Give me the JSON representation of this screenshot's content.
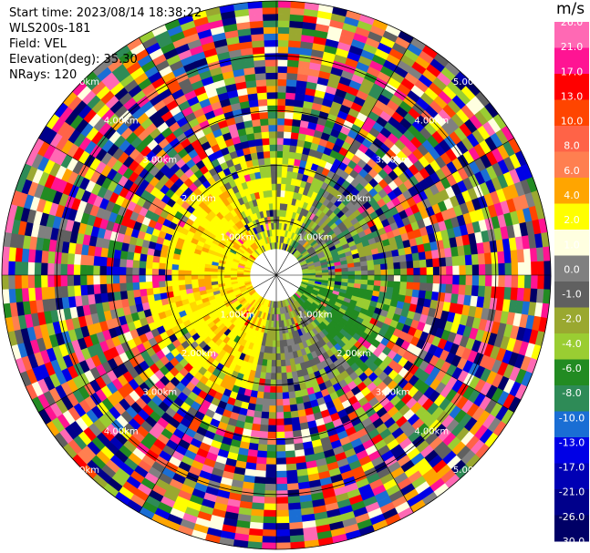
{
  "info": {
    "start_time": "Start time: 2023/08/14 18:38:22",
    "station": "WLS200s-181",
    "field": "Field: VEL",
    "elevation": "Elevation(deg): 35.30",
    "nrays": "NRays: 120"
  },
  "colorbar": {
    "title": "m/s",
    "colors": [
      "#000066",
      "#00008b",
      "#0000b4",
      "#0000e6",
      "#1a6ed4",
      "#2e8b57",
      "#228b22",
      "#9acd32",
      "#9aa830",
      "#606060",
      "#808080",
      "#ffffe0",
      "#ffff00",
      "#ffa500",
      "#ff7f50",
      "#ff6347",
      "#ff4500",
      "#ff0000",
      "#ff1493",
      "#ff69b4"
    ],
    "labels": [
      "-30.0",
      "-26.0",
      "-21.0",
      "-17.0",
      "-13.0",
      "-10.0",
      "-8.0",
      "-6.0",
      "-4.0",
      "-2.0",
      "-1.0",
      "0.0",
      "1.0",
      "2.0",
      "4.0",
      "6.0",
      "8.0",
      "10.0",
      "13.0",
      "17.0",
      "21.0",
      "26.0"
    ]
  },
  "chart_data": {
    "type": "heatmap",
    "projection": "polar-ppi",
    "field": "VEL",
    "units": "m/s",
    "nrays": 120,
    "elevation_deg": 35.3,
    "range_ring_labels": [
      "1.00km",
      "2.00km",
      "3.00km",
      "4.00km",
      "5.00km"
    ],
    "range_rings_km": [
      1,
      2,
      3,
      4,
      5
    ],
    "spoke_angles_deg": [
      0,
      30,
      60,
      90,
      120,
      150,
      180,
      210,
      240,
      270,
      300,
      330
    ],
    "colorbar_levels": [
      -30.0,
      -26.0,
      -21.0,
      -17.0,
      -13.0,
      -10.0,
      -8.0,
      -6.0,
      -4.0,
      -2.0,
      -1.0,
      0.0,
      1.0,
      2.0,
      4.0,
      6.0,
      8.0,
      10.0,
      13.0,
      17.0,
      21.0,
      26.0
    ]
  }
}
